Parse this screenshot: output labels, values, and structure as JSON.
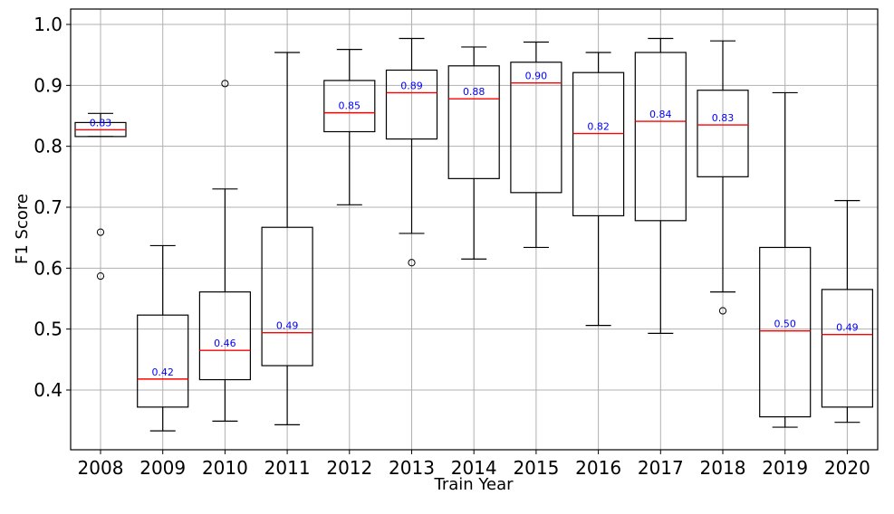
{
  "chart_data": {
    "type": "box",
    "title": "",
    "xlabel": "Train Year",
    "ylabel": "F1 Score",
    "categories": [
      "2008",
      "2009",
      "2010",
      "2011",
      "2012",
      "2013",
      "2014",
      "2015",
      "2016",
      "2017",
      "2018",
      "2019",
      "2020"
    ],
    "ylim": [
      0.3,
      1.0
    ],
    "yticks": [
      0.4,
      0.5,
      0.6,
      0.7,
      0.8,
      0.9,
      1.0
    ],
    "ytick_labels": [
      "0.4",
      "0.5",
      "0.6",
      "0.7",
      "0.8",
      "0.9",
      "1.0"
    ],
    "grid": true,
    "median_color": "#ff0000",
    "median_label_color": "#0000ff",
    "boxes": [
      {
        "category": "2008",
        "whisker_low": 0.816,
        "q1": 0.816,
        "median": 0.827,
        "q3": 0.839,
        "whisker_high": 0.854,
        "outliers": [
          0.659,
          0.587
        ],
        "median_label": "0.83"
      },
      {
        "category": "2009",
        "whisker_low": 0.333,
        "q1": 0.372,
        "median": 0.418,
        "q3": 0.523,
        "whisker_high": 0.637,
        "outliers": [],
        "median_label": "0.42"
      },
      {
        "category": "2010",
        "whisker_low": 0.349,
        "q1": 0.417,
        "median": 0.465,
        "q3": 0.561,
        "whisker_high": 0.73,
        "outliers": [
          0.903
        ],
        "median_label": "0.46"
      },
      {
        "category": "2011",
        "whisker_low": 0.343,
        "q1": 0.44,
        "median": 0.494,
        "q3": 0.667,
        "whisker_high": 0.954,
        "outliers": [],
        "median_label": "0.49"
      },
      {
        "category": "2012",
        "whisker_low": 0.704,
        "q1": 0.824,
        "median": 0.855,
        "q3": 0.908,
        "whisker_high": 0.959,
        "outliers": [],
        "median_label": "0.85"
      },
      {
        "category": "2013",
        "whisker_low": 0.657,
        "q1": 0.812,
        "median": 0.888,
        "q3": 0.925,
        "whisker_high": 0.977,
        "outliers": [
          0.609
        ],
        "median_label": "0.89"
      },
      {
        "category": "2014",
        "whisker_low": 0.615,
        "q1": 0.747,
        "median": 0.878,
        "q3": 0.932,
        "whisker_high": 0.963,
        "outliers": [],
        "median_label": "0.88"
      },
      {
        "category": "2015",
        "whisker_low": 0.634,
        "q1": 0.724,
        "median": 0.904,
        "q3": 0.938,
        "whisker_high": 0.971,
        "outliers": [],
        "median_label": "0.90"
      },
      {
        "category": "2016",
        "whisker_low": 0.506,
        "q1": 0.686,
        "median": 0.821,
        "q3": 0.921,
        "whisker_high": 0.954,
        "outliers": [],
        "median_label": "0.82"
      },
      {
        "category": "2017",
        "whisker_low": 0.493,
        "q1": 0.678,
        "median": 0.841,
        "q3": 0.954,
        "whisker_high": 0.977,
        "outliers": [],
        "median_label": "0.84"
      },
      {
        "category": "2018",
        "whisker_low": 0.561,
        "q1": 0.75,
        "median": 0.835,
        "q3": 0.892,
        "whisker_high": 0.973,
        "outliers": [
          0.53
        ],
        "median_label": "0.83"
      },
      {
        "category": "2019",
        "whisker_low": 0.339,
        "q1": 0.356,
        "median": 0.497,
        "q3": 0.634,
        "whisker_high": 0.888,
        "outliers": [],
        "median_label": "0.50"
      },
      {
        "category": "2020",
        "whisker_low": 0.347,
        "q1": 0.372,
        "median": 0.491,
        "q3": 0.565,
        "whisker_high": 0.711,
        "outliers": [],
        "median_label": "0.49"
      }
    ]
  }
}
